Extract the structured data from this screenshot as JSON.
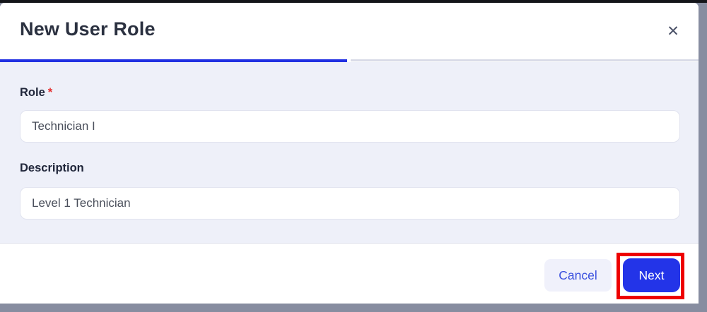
{
  "modal": {
    "title": "New User Role",
    "close_glyph": "✕"
  },
  "steps": {
    "active_step": 1,
    "total_steps": 2
  },
  "form": {
    "role": {
      "label": "Role",
      "required_marker": "*",
      "value": "Technician I"
    },
    "description": {
      "label": "Description",
      "value": "Level 1 Technician"
    }
  },
  "footer": {
    "cancel_label": "Cancel",
    "next_label": "Next"
  },
  "colors": {
    "accent_blue": "#2130e2",
    "next_button_blue": "#2334e8",
    "cancel_text_blue": "#3a50de",
    "required_red": "#e42c2c",
    "annotation_red": "#ee0000",
    "form_background": "#eef0f9",
    "backdrop_gray": "#878da0",
    "title_text": "#2b3140"
  }
}
